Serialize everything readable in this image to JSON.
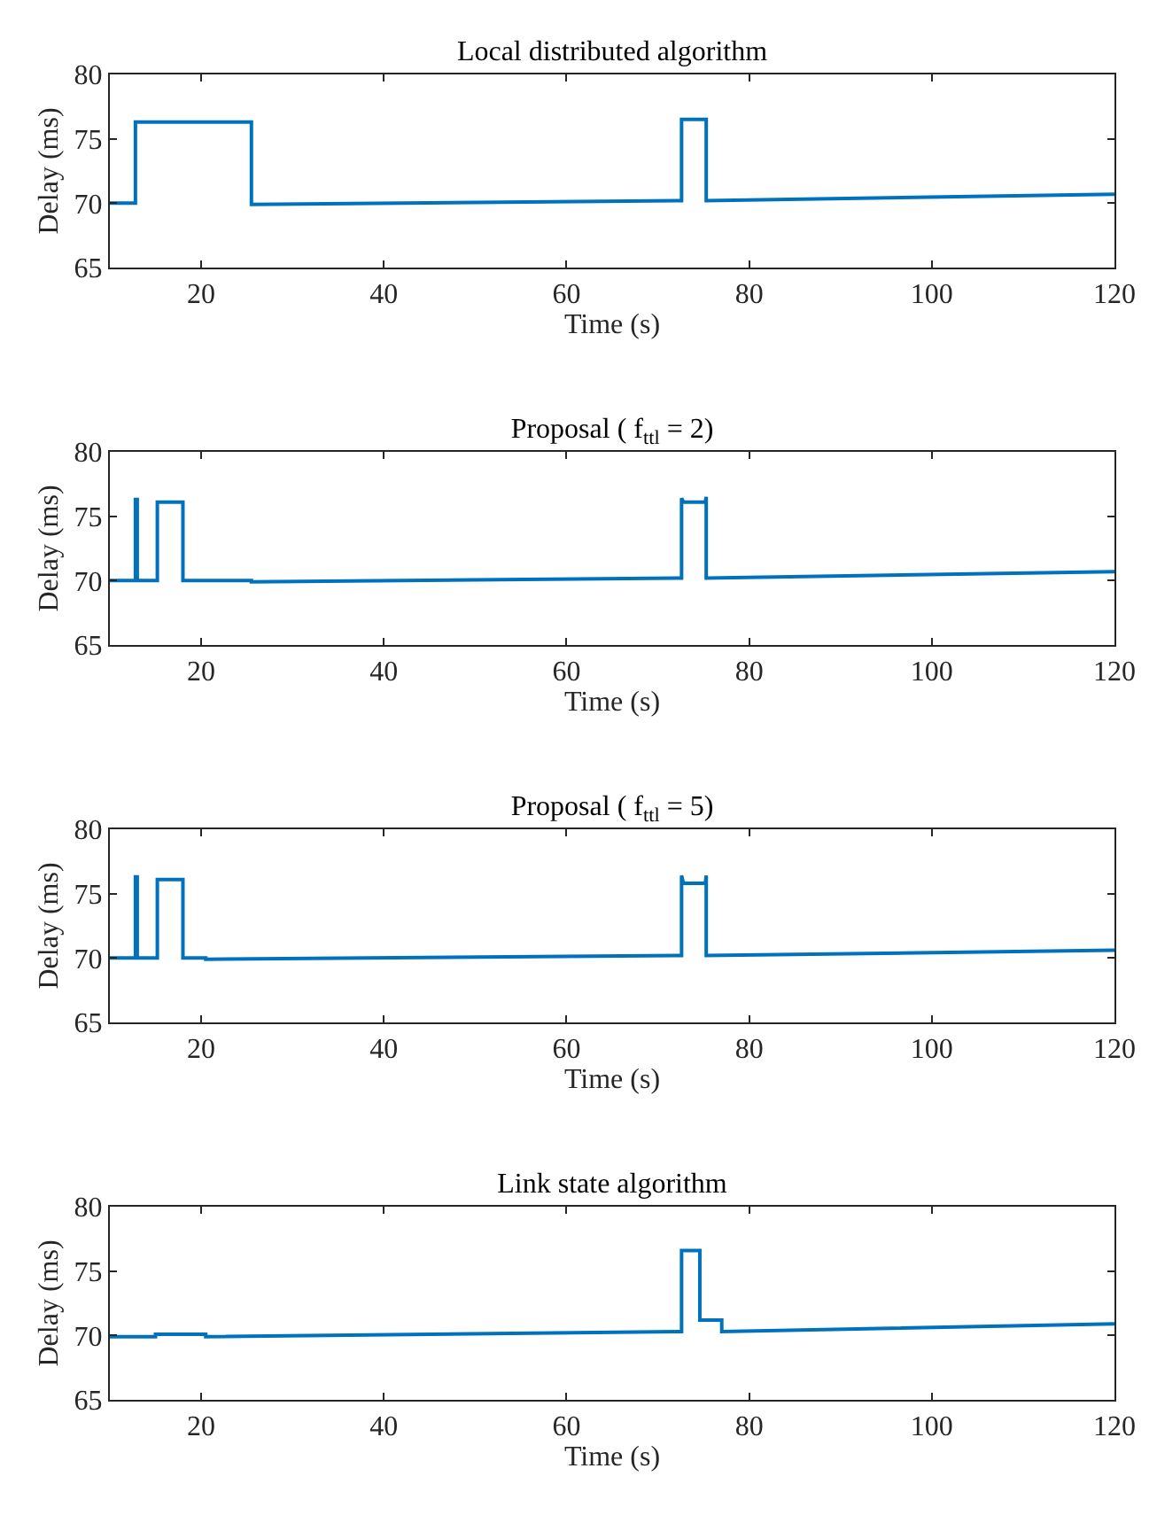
{
  "chart_data": [
    {
      "type": "line",
      "title": "Local distributed algorithm",
      "xlabel": "Time (s)",
      "ylabel": "Delay (ms)",
      "xlim": [
        10,
        120
      ],
      "ylim": [
        65,
        80
      ],
      "xticks": [
        20,
        40,
        60,
        80,
        100,
        120
      ],
      "yticks": [
        65,
        70,
        75,
        80
      ],
      "series": [
        {
          "color": "#0072bd",
          "x": [
            10,
            12.8,
            12.8,
            25.5,
            25.5,
            72.6,
            72.6,
            75.3,
            75.3,
            120
          ],
          "values": [
            70.0,
            70.0,
            76.3,
            76.3,
            69.9,
            70.2,
            76.5,
            76.5,
            70.2,
            70.7
          ]
        }
      ]
    },
    {
      "type": "line",
      "title": "Proposal ( f$_{ttl}$ = 2)",
      "xlabel": "Time (s)",
      "ylabel": "Delay (ms)",
      "xlim": [
        10,
        120
      ],
      "ylim": [
        65,
        80
      ],
      "xticks": [
        20,
        40,
        60,
        80,
        100,
        120
      ],
      "yticks": [
        65,
        70,
        75,
        80
      ],
      "series": [
        {
          "color": "#0072bd",
          "x": [
            10,
            12.8,
            12.8,
            13.0,
            13.0,
            15.2,
            15.2,
            18.0,
            18.0,
            25.5,
            25.5,
            72.6,
            72.6,
            72.8,
            75.2,
            75.3,
            75.3,
            120
          ],
          "values": [
            70.0,
            70.0,
            76.3,
            76.3,
            70.0,
            70.0,
            76.1,
            76.1,
            70.0,
            70.0,
            69.9,
            70.2,
            76.4,
            76.1,
            76.1,
            76.5,
            70.2,
            70.7
          ]
        }
      ]
    },
    {
      "type": "line",
      "title": "Proposal ( f$_{ttl}$ = 5)",
      "xlabel": "Time (s)",
      "ylabel": "Delay (ms)",
      "xlim": [
        10,
        120
      ],
      "ylim": [
        65,
        80
      ],
      "xticks": [
        20,
        40,
        60,
        80,
        100,
        120
      ],
      "yticks": [
        65,
        70,
        75,
        80
      ],
      "series": [
        {
          "color": "#0072bd",
          "x": [
            10,
            12.8,
            12.8,
            13.0,
            13.0,
            15.2,
            15.2,
            18.0,
            18.0,
            20.5,
            20.5,
            72.6,
            72.6,
            72.8,
            75.2,
            75.3,
            75.3,
            120
          ],
          "values": [
            70.0,
            70.0,
            76.3,
            76.3,
            70.0,
            70.0,
            76.1,
            76.1,
            70.0,
            70.0,
            69.9,
            70.2,
            76.4,
            75.8,
            75.8,
            76.4,
            70.2,
            70.6
          ]
        }
      ]
    },
    {
      "type": "line",
      "title": "Link state algorithm",
      "xlabel": "Time (s)",
      "ylabel": "Delay (ms)",
      "xlim": [
        10,
        120
      ],
      "ylim": [
        65,
        80
      ],
      "xticks": [
        20,
        40,
        60,
        80,
        100,
        120
      ],
      "yticks": [
        65,
        70,
        75,
        80
      ],
      "series": [
        {
          "color": "#0072bd",
          "x": [
            10,
            15.0,
            15.0,
            20.5,
            20.5,
            72.6,
            72.6,
            74.6,
            74.6,
            77.0,
            77.0,
            120
          ],
          "values": [
            69.9,
            69.9,
            70.1,
            70.1,
            69.9,
            70.3,
            76.6,
            76.6,
            71.2,
            71.2,
            70.3,
            70.9
          ]
        }
      ]
    }
  ]
}
